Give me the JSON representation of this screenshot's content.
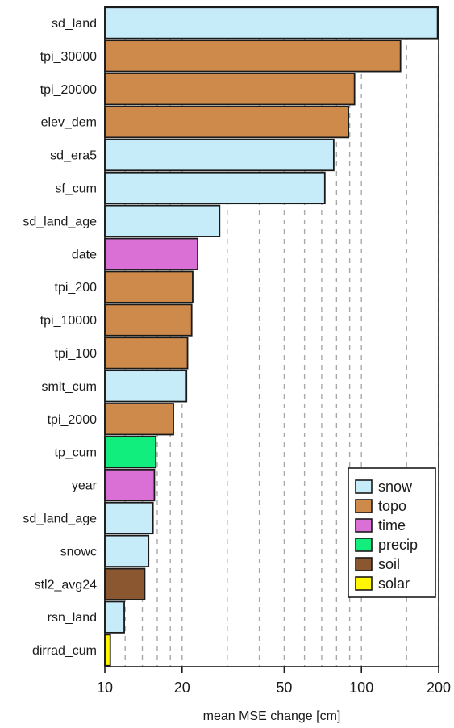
{
  "chart_data": {
    "type": "bar",
    "orientation": "horizontal",
    "x_scale": "log",
    "xlim": [
      10,
      200
    ],
    "xlabel": "mean MSE change [cm]",
    "xticks": [
      10,
      20,
      50,
      100,
      200
    ],
    "minor_gridlines": [
      12,
      14,
      16,
      18,
      20,
      30,
      40,
      50,
      60,
      70,
      80,
      90,
      100,
      150,
      200
    ],
    "grid": "vertical dashed",
    "legend_position": "bottom-right",
    "categories": [
      "sd_land",
      "tpi_30000",
      "tpi_20000",
      "elev_dem",
      "sd_era5",
      "sf_cum",
      "sd_land_age",
      "date",
      "tpi_200",
      "tpi_10000",
      "tpi_100",
      "smlt_cum",
      "tpi_2000",
      "tp_cum",
      "year",
      "sd_land_age",
      "snowc",
      "stl2_avg24",
      "rsn_land",
      "dirrad_cum"
    ],
    "values": [
      198,
      142,
      94,
      89,
      78,
      72,
      28,
      23,
      22,
      21.8,
      21,
      20.8,
      18.5,
      15.8,
      15.6,
      15.4,
      14.8,
      14.3,
      11.9,
      10.5
    ],
    "groups": [
      "snow",
      "topo",
      "topo",
      "topo",
      "snow",
      "snow",
      "snow",
      "time",
      "topo",
      "topo",
      "topo",
      "snow",
      "topo",
      "precip",
      "time",
      "snow",
      "snow",
      "soil",
      "snow",
      "solar"
    ],
    "legend": [
      {
        "name": "snow",
        "color": "#c6ecfa"
      },
      {
        "name": "topo",
        "color": "#cd8a4a"
      },
      {
        "name": "time",
        "color": "#da6fd6"
      },
      {
        "name": "precip",
        "color": "#11ee7e"
      },
      {
        "name": "soil",
        "color": "#8a5730"
      },
      {
        "name": "solar",
        "color": "#fff600"
      }
    ]
  }
}
